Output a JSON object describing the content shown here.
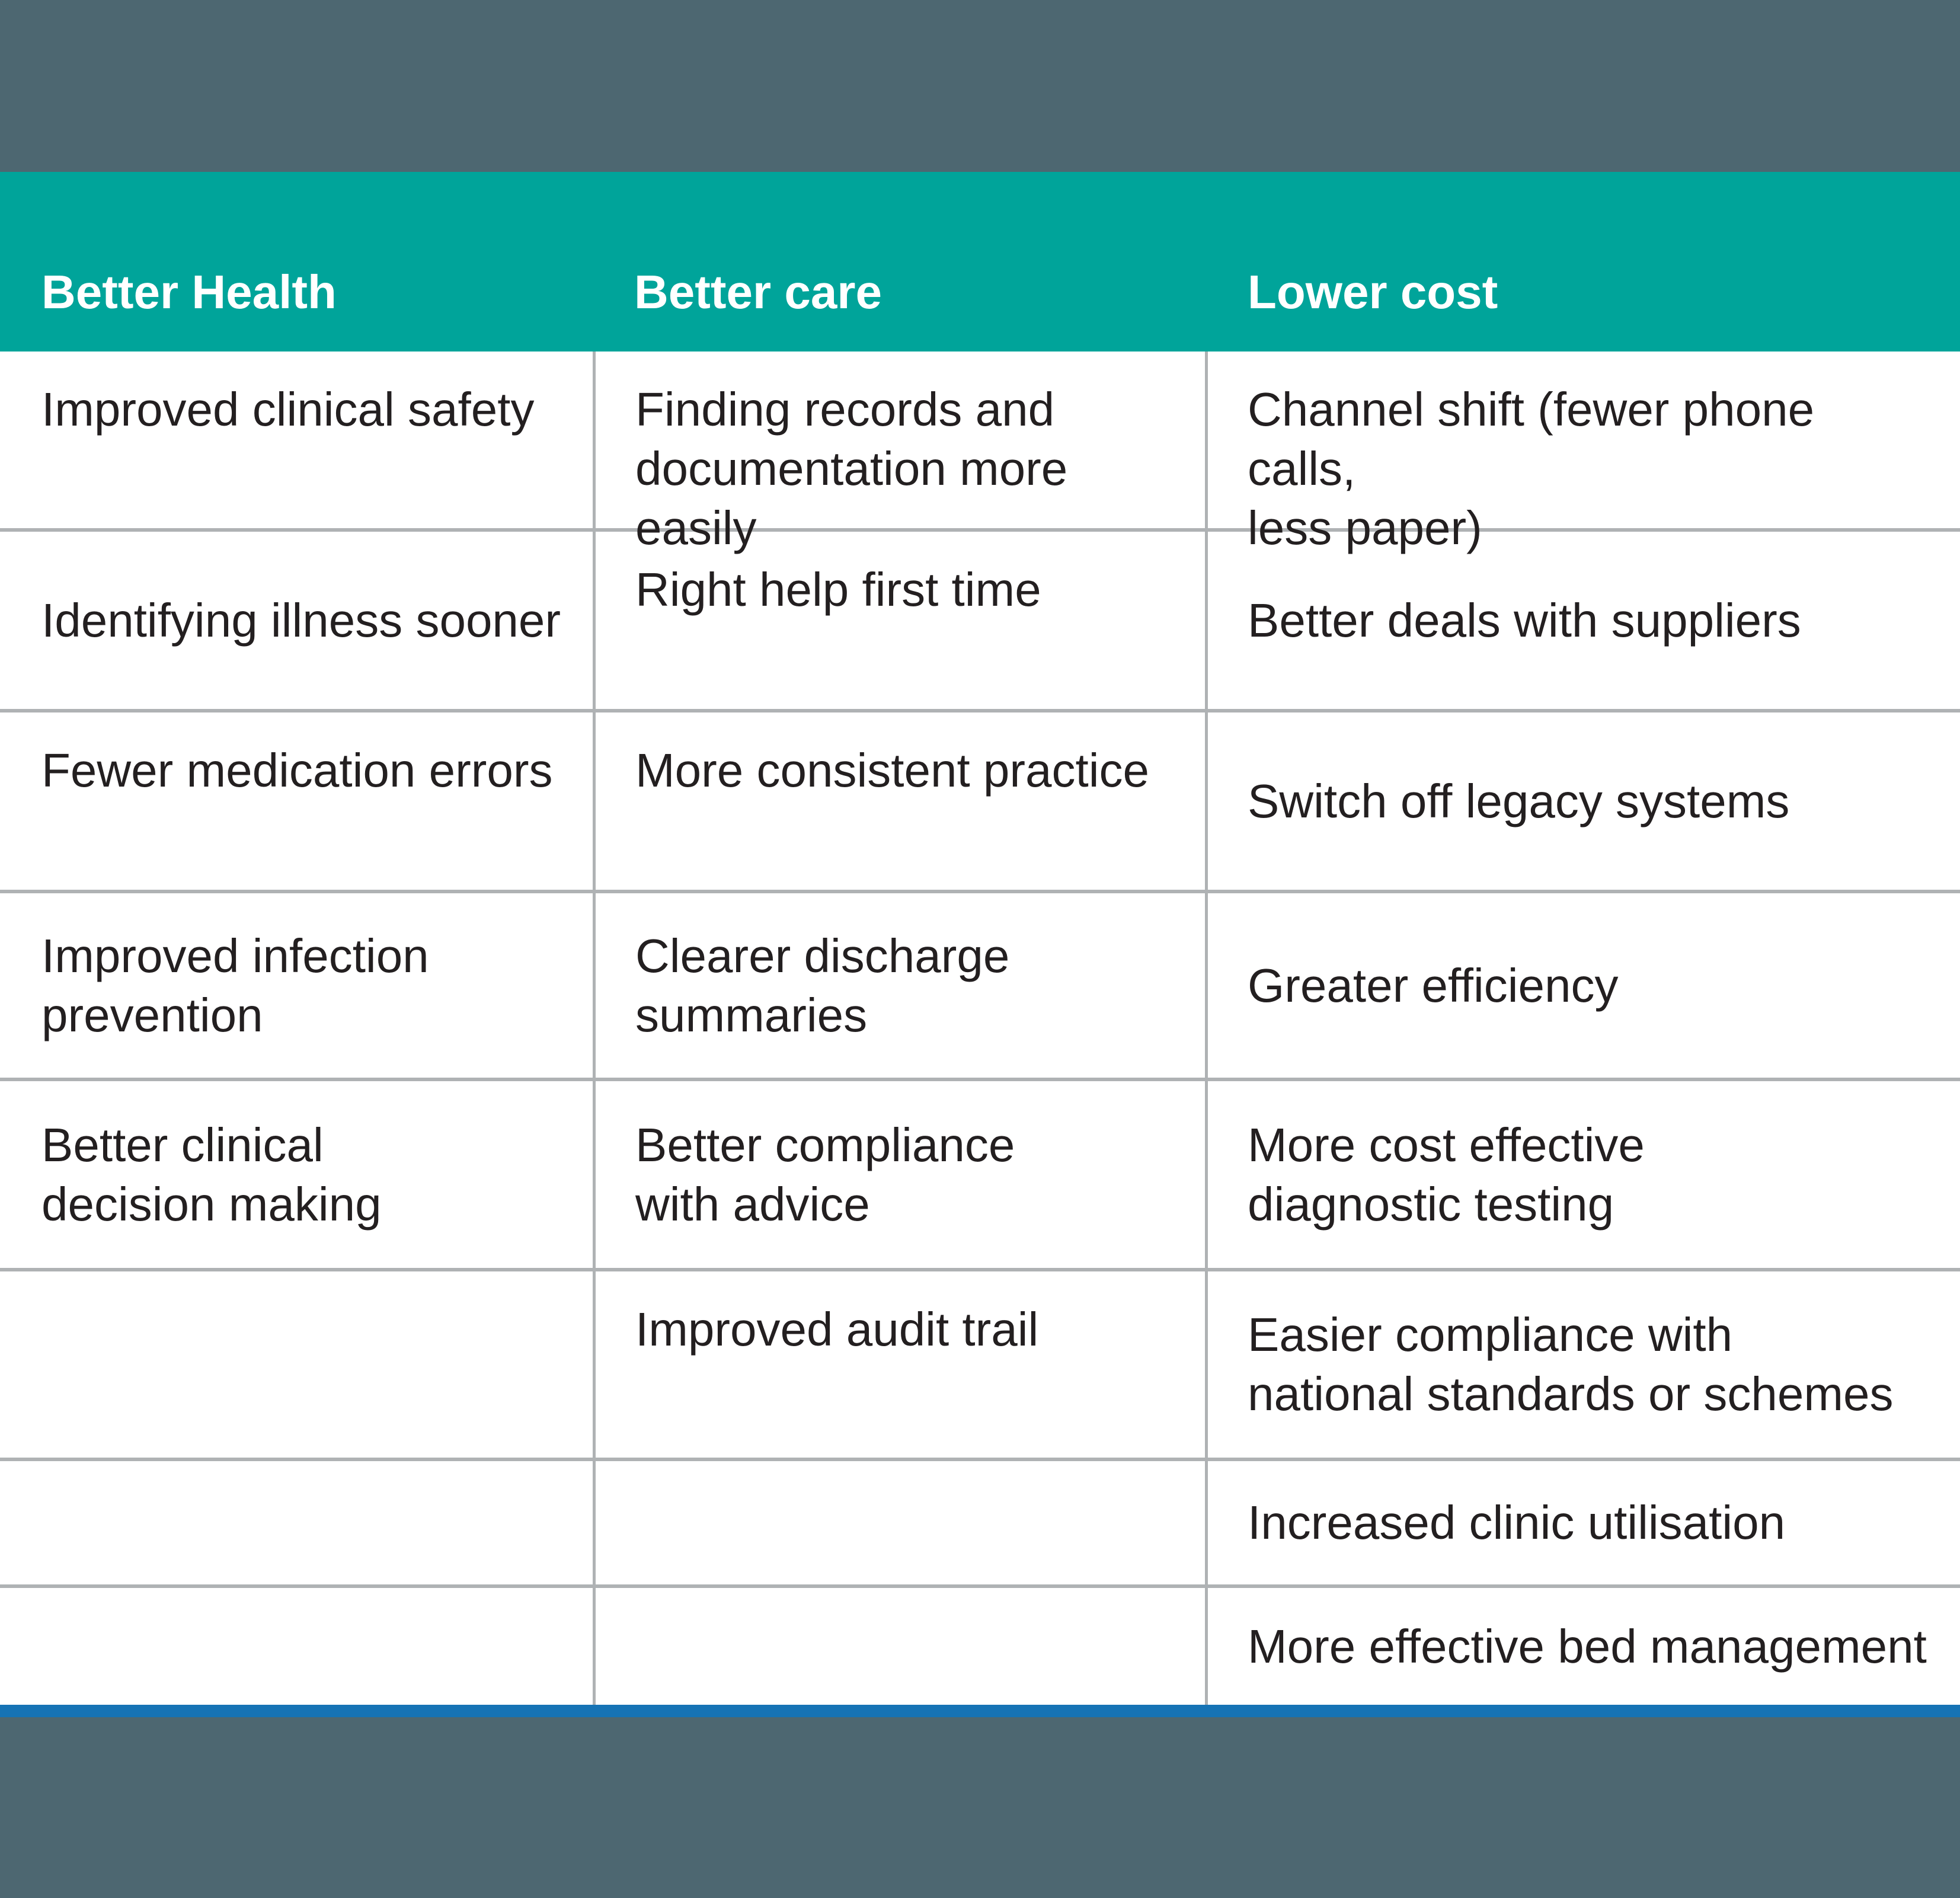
{
  "colors": {
    "slate": "#4d6771",
    "teal": "#00a49a",
    "blue": "#1673b5",
    "grid": "#afb2b4",
    "text": "#231f20",
    "header-text": "#ffffff",
    "cell-bg": "#ffffff"
  },
  "table": {
    "columns": [
      {
        "header": "Better Health",
        "rows": [
          "Improved clinical safety",
          "Identifying illness sooner",
          "Fewer medication errors",
          "Improved infection\nprevention",
          "Better clinical\ndecision making",
          "",
          "",
          ""
        ]
      },
      {
        "header": "Better care",
        "rows": [
          "Finding records and\ndocumentation more easily",
          "Right help first time",
          "More consistent practice",
          "Clearer discharge\nsummaries",
          "Better compliance\nwith advice",
          "Improved audit trail",
          "",
          ""
        ]
      },
      {
        "header": "Lower cost",
        "rows": [
          "Channel shift (fewer phone calls,\nless paper)",
          "Better deals with suppliers",
          "Switch off legacy systems",
          "Greater efficiency",
          "More cost effective\ndiagnostic testing",
          "Easier compliance with\nnational standards or schemes",
          "Increased clinic utilisation",
          "More effective bed management"
        ]
      }
    ]
  }
}
